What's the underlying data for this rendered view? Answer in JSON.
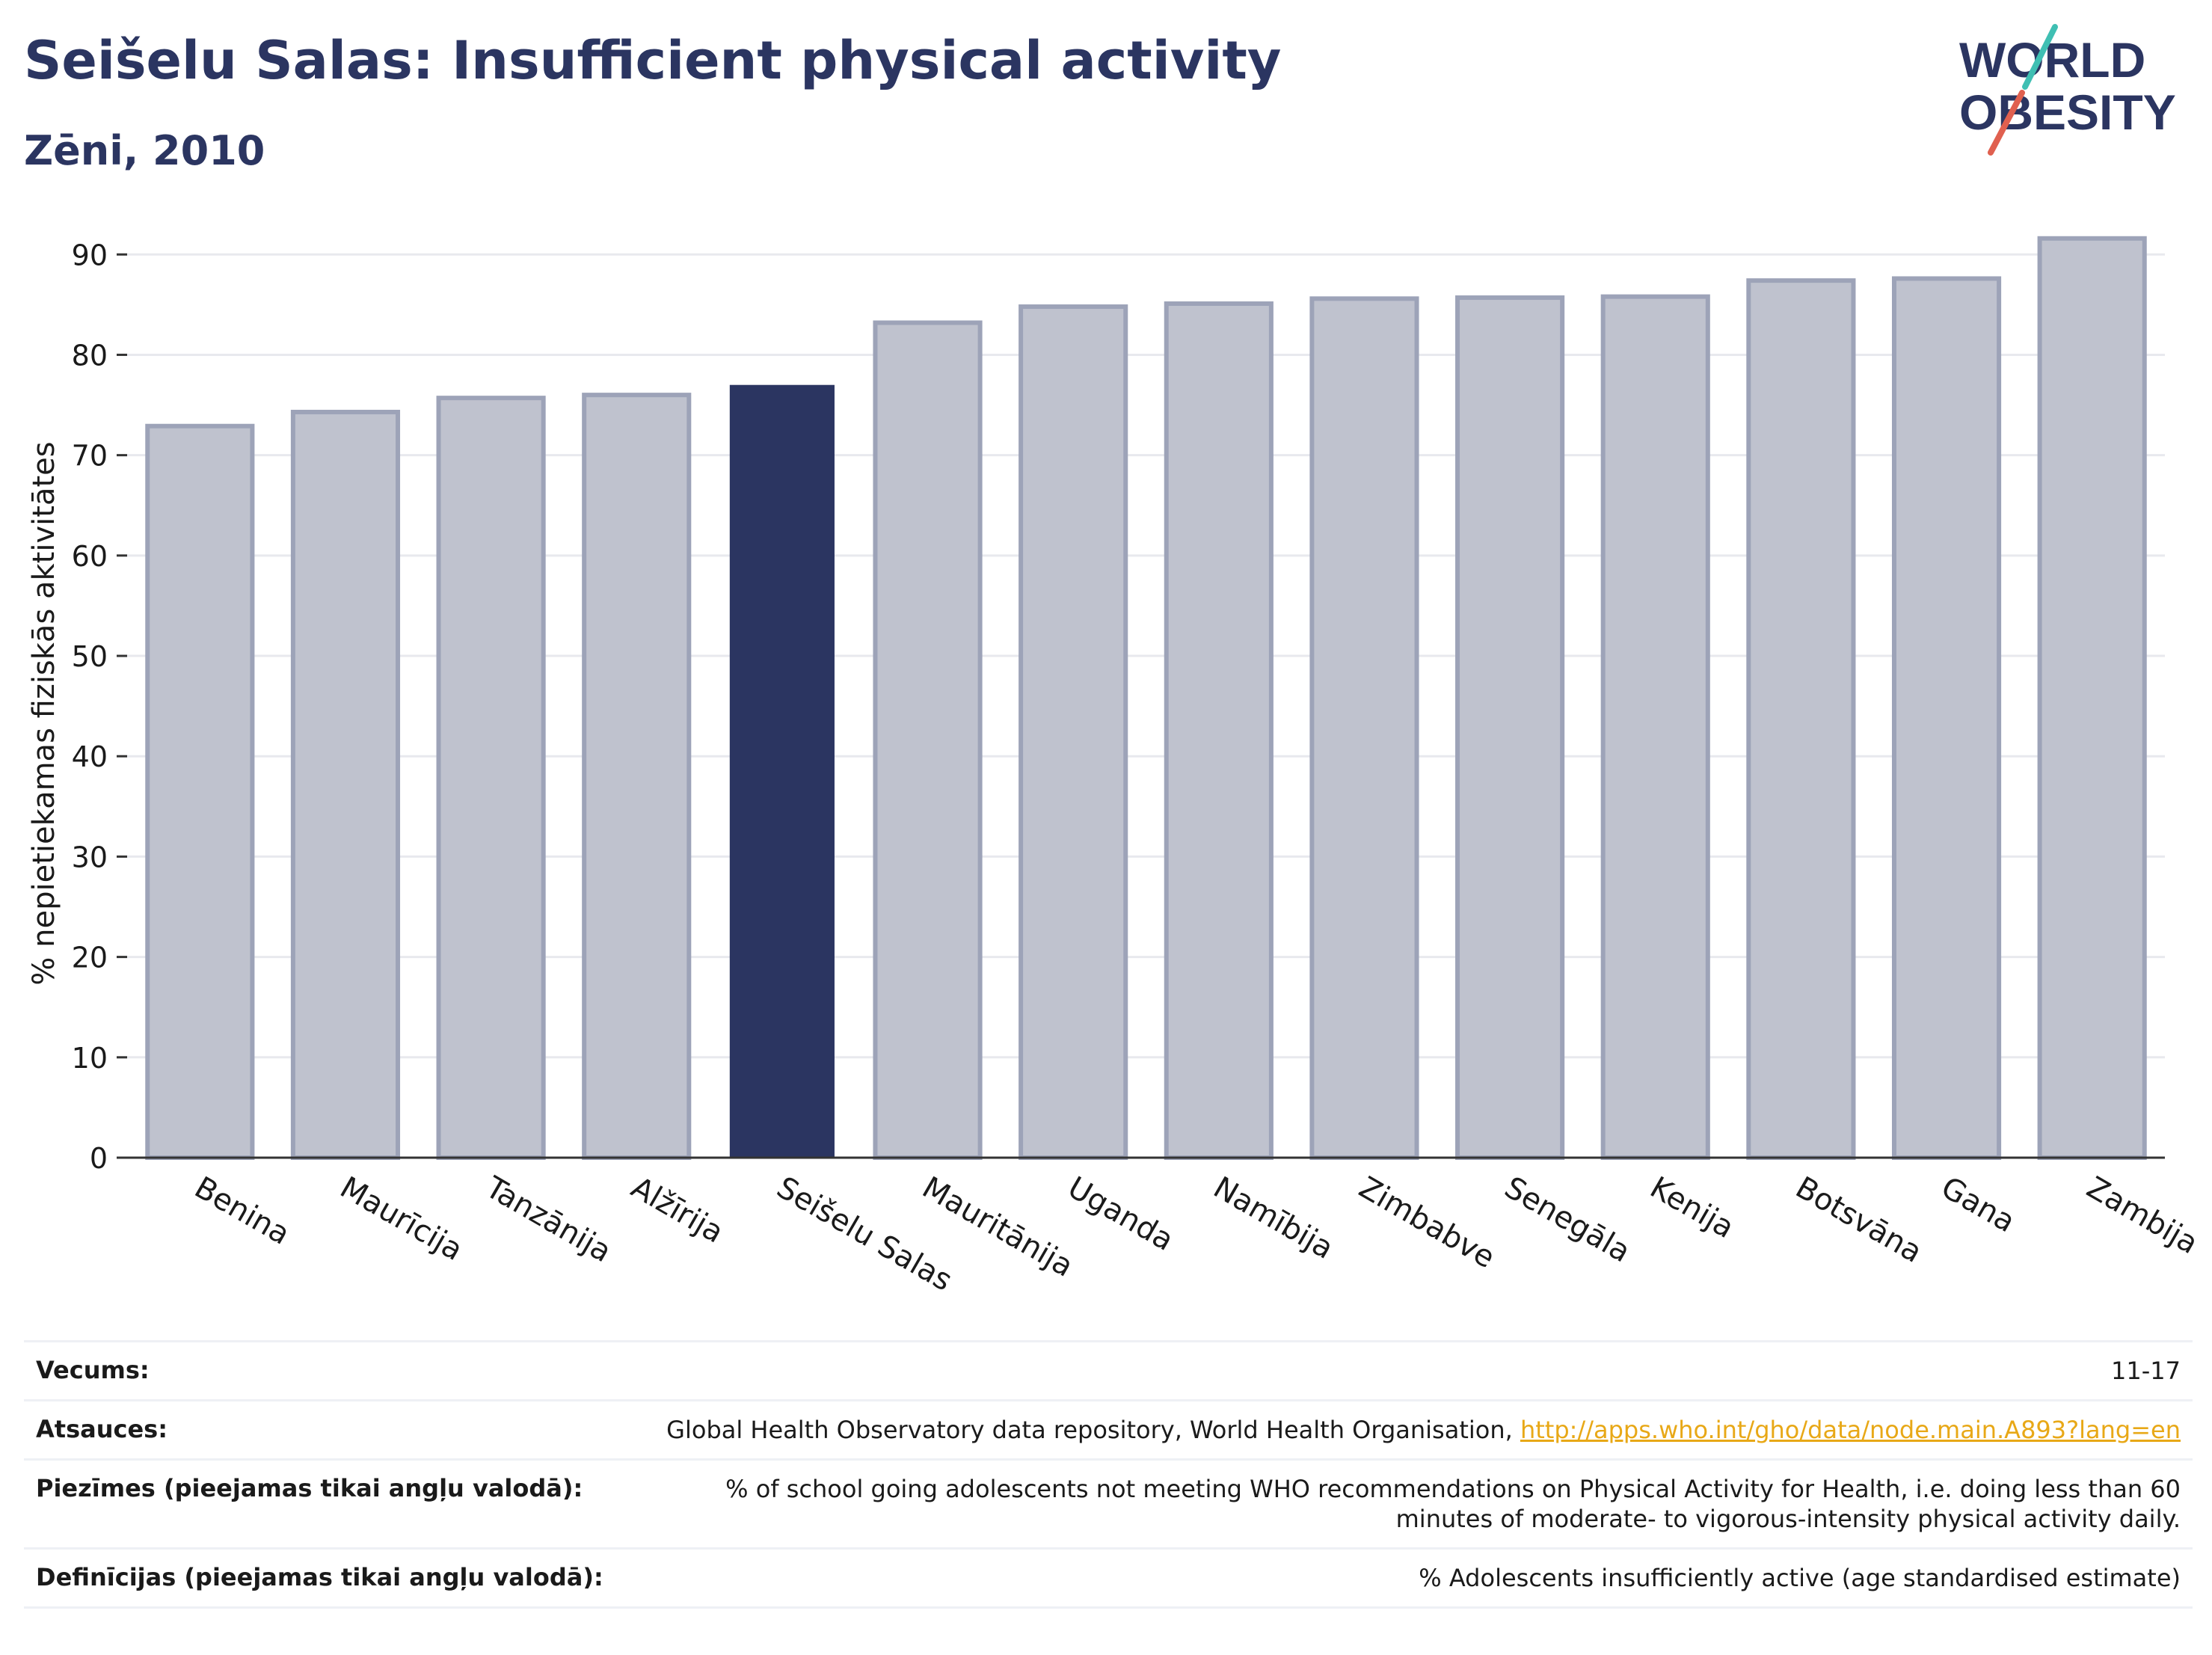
{
  "header": {
    "title": "Seišelu Salas: Insufficient physical activity",
    "subtitle": "Zēni, 2010"
  },
  "logo": {
    "line1": "WORLD",
    "line2": "OBESITY",
    "colors": {
      "text": "#2b3561",
      "accent_teal": "#3fbfb3",
      "accent_red": "#e0604f"
    }
  },
  "chart_data": {
    "type": "bar",
    "ylabel": "% nepietiekamas fiziskās aktivitātes",
    "ylim": [
      0,
      93
    ],
    "yticks": [
      0,
      10,
      20,
      30,
      40,
      50,
      60,
      70,
      80,
      90
    ],
    "grid": true,
    "categories": [
      "Benina",
      "Maurīcija",
      "Tanzānija",
      "Alžīrija",
      "Seišelu Salas",
      "Mauritānija",
      "Uganda",
      "Namībija",
      "Zimbabve",
      "Senegāla",
      "Kenija",
      "Botsvāna",
      "Gana",
      "Zambija"
    ],
    "values": [
      72.9,
      74.3,
      75.7,
      76.0,
      77.0,
      83.2,
      84.8,
      85.1,
      85.6,
      85.7,
      85.8,
      87.4,
      87.6,
      91.6
    ],
    "highlight": "Seišelu Salas",
    "colors": {
      "bar": "#bfc2ce",
      "bar_border": "#9da3b8",
      "highlight": "#2b3561",
      "axis": "#333333",
      "grid": "#e8e9ee"
    }
  },
  "meta": [
    {
      "label": "Vecums:",
      "value": "11-17"
    },
    {
      "label": "Atsauces:",
      "value": "Global Health Observatory data repository, World Health Organisation, ",
      "link": "http://apps.who.int/gho/data/node.main.A893?lang=en"
    },
    {
      "label": "Piezīmes (pieejamas tikai angļu valodā):",
      "value": "% of school going adolescents not meeting WHO recommendations on Physical Activity for Health, i.e. doing less than 60 minutes of moderate- to vigorous-intensity physical activity daily."
    },
    {
      "label": "Definīcijas (pieejamas tikai angļu valodā):",
      "value": "% Adolescents insufficiently active (age standardised estimate)"
    }
  ]
}
